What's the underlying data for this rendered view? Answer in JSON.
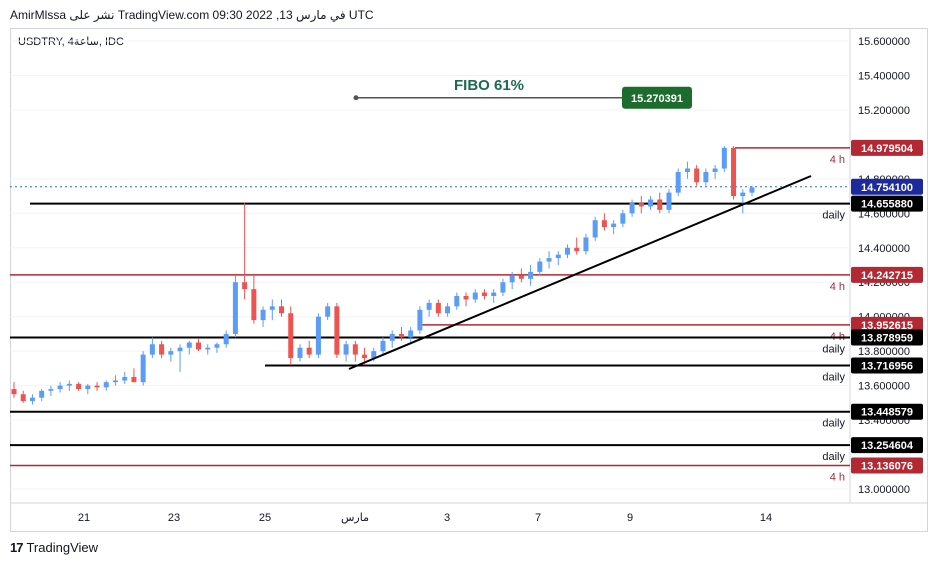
{
  "header": {
    "publish_line": "AmirMlssa نشر على TradingView.com في مارس 13, 2022 09:30 UTC"
  },
  "footer": {
    "logo_glyph": "17",
    "brand": "TradingView"
  },
  "colors": {
    "up": "#5b9cf6",
    "down": "#ef5350",
    "red_line": "#b22833",
    "black_line": "#000000",
    "fibo_text": "#1b6b50",
    "fibo_label_bg": "#1e6b2e",
    "price_label_bg": "#1c2a9c",
    "grid": "#f0f3fa",
    "current_price_line": "#2962ff"
  },
  "chart_data": {
    "type": "candlestick",
    "symbol_label": "USDTRY, 4ساعة, IDC",
    "x_ticks": [
      "21",
      "23",
      "25",
      "مارس",
      "3",
      "7",
      "9",
      "14"
    ],
    "y_ticks": [
      "15.600000",
      "15.400000",
      "15.200000",
      "14.800000",
      "14.600000",
      "14.400000",
      "14.200000",
      "14.000000",
      "13.800000",
      "13.600000",
      "13.400000",
      "13.000000"
    ],
    "ylim": [
      12.9,
      15.7
    ],
    "annotation": {
      "text": "FIBO 61%",
      "value": "15.270391",
      "price": 15.270391
    },
    "current_price": "14.754100",
    "levels": [
      {
        "price": 14.979504,
        "label": "14.979504",
        "tag": "4 h",
        "color": "red"
      },
      {
        "price": 14.65588,
        "label": "14.655880",
        "tag": "daily",
        "color": "black"
      },
      {
        "price": 14.242715,
        "label": "14.242715",
        "tag": "4 h",
        "color": "red"
      },
      {
        "price": 13.952615,
        "label": "13.952615",
        "tag": "4 h",
        "color": "red"
      },
      {
        "price": 13.878959,
        "label": "13.878959",
        "tag": "daily",
        "color": "black"
      },
      {
        "price": 13.716956,
        "label": "13.716956",
        "tag": "daily",
        "color": "black"
      },
      {
        "price": 13.448579,
        "label": "13.448579",
        "tag": "daily",
        "color": "black"
      },
      {
        "price": 13.254604,
        "label": "13.254604",
        "tag": "daily",
        "color": "black"
      },
      {
        "price": 13.136076,
        "label": "13.136076",
        "tag": "4 h",
        "color": "red"
      }
    ],
    "candles": [
      [
        13.58,
        13.62,
        13.53,
        13.55
      ],
      [
        13.55,
        13.57,
        13.5,
        13.51
      ],
      [
        13.51,
        13.55,
        13.49,
        13.53
      ],
      [
        13.53,
        13.58,
        13.51,
        13.57
      ],
      [
        13.57,
        13.6,
        13.54,
        13.58
      ],
      [
        13.58,
        13.62,
        13.56,
        13.6
      ],
      [
        13.6,
        13.63,
        13.57,
        13.61
      ],
      [
        13.61,
        13.62,
        13.57,
        13.58
      ],
      [
        13.58,
        13.61,
        13.55,
        13.6
      ],
      [
        13.6,
        13.62,
        13.57,
        13.59
      ],
      [
        13.59,
        13.63,
        13.57,
        13.62
      ],
      [
        13.62,
        13.66,
        13.6,
        13.63
      ],
      [
        13.63,
        13.68,
        13.61,
        13.65
      ],
      [
        13.65,
        13.7,
        13.62,
        13.62
      ],
      [
        13.62,
        13.8,
        13.6,
        13.78
      ],
      [
        13.78,
        13.88,
        13.76,
        13.84
      ],
      [
        13.84,
        13.86,
        13.76,
        13.78
      ],
      [
        13.78,
        13.82,
        13.74,
        13.8
      ],
      [
        13.8,
        13.84,
        13.68,
        13.82
      ],
      [
        13.82,
        13.86,
        13.78,
        13.85
      ],
      [
        13.85,
        13.87,
        13.8,
        13.81
      ],
      [
        13.81,
        13.84,
        13.78,
        13.82
      ],
      [
        13.82,
        13.85,
        13.79,
        13.84
      ],
      [
        13.84,
        13.92,
        13.82,
        13.9
      ],
      [
        13.9,
        14.24,
        13.88,
        14.2
      ],
      [
        14.2,
        14.66,
        14.1,
        14.16
      ],
      [
        14.16,
        14.25,
        13.96,
        13.98
      ],
      [
        13.98,
        14.06,
        13.94,
        14.04
      ],
      [
        14.04,
        14.1,
        13.98,
        14.06
      ],
      [
        14.06,
        14.1,
        14.0,
        14.02
      ],
      [
        14.02,
        14.06,
        13.72,
        13.76
      ],
      [
        13.76,
        13.84,
        13.74,
        13.82
      ],
      [
        13.82,
        13.86,
        13.76,
        13.78
      ],
      [
        13.78,
        14.02,
        13.76,
        14.0
      ],
      [
        14.0,
        14.08,
        13.98,
        14.06
      ],
      [
        14.06,
        14.08,
        13.76,
        13.78
      ],
      [
        13.78,
        13.86,
        13.74,
        13.84
      ],
      [
        13.84,
        13.86,
        13.74,
        13.78
      ],
      [
        13.78,
        13.82,
        13.72,
        13.76
      ],
      [
        13.76,
        13.82,
        13.74,
        13.8
      ],
      [
        13.8,
        13.88,
        13.78,
        13.86
      ],
      [
        13.86,
        13.92,
        13.82,
        13.9
      ],
      [
        13.9,
        13.94,
        13.86,
        13.88
      ],
      [
        13.88,
        13.94,
        13.84,
        13.92
      ],
      [
        13.92,
        14.06,
        13.9,
        14.04
      ],
      [
        14.04,
        14.1,
        14.0,
        14.08
      ],
      [
        14.08,
        14.1,
        14.0,
        14.02
      ],
      [
        14.02,
        14.08,
        14.0,
        14.06
      ],
      [
        14.06,
        14.14,
        14.04,
        14.12
      ],
      [
        14.12,
        14.14,
        14.06,
        14.1
      ],
      [
        14.1,
        14.16,
        14.08,
        14.14
      ],
      [
        14.14,
        14.16,
        14.1,
        14.12
      ],
      [
        14.12,
        14.16,
        14.08,
        14.14
      ],
      [
        14.14,
        14.22,
        14.12,
        14.2
      ],
      [
        14.2,
        14.26,
        14.16,
        14.24
      ],
      [
        14.24,
        14.28,
        14.2,
        14.22
      ],
      [
        14.22,
        14.3,
        14.18,
        14.26
      ],
      [
        14.26,
        14.34,
        14.24,
        14.32
      ],
      [
        14.32,
        14.38,
        14.28,
        14.34
      ],
      [
        14.34,
        14.38,
        14.3,
        14.36
      ],
      [
        14.36,
        14.42,
        14.34,
        14.4
      ],
      [
        14.4,
        14.46,
        14.36,
        14.38
      ],
      [
        14.38,
        14.48,
        14.36,
        14.46
      ],
      [
        14.46,
        14.58,
        14.44,
        14.56
      ],
      [
        14.56,
        14.6,
        14.5,
        14.52
      ],
      [
        14.52,
        14.56,
        14.48,
        14.54
      ],
      [
        14.54,
        14.62,
        14.52,
        14.6
      ],
      [
        14.6,
        14.68,
        14.58,
        14.66
      ],
      [
        14.66,
        14.7,
        14.6,
        14.64
      ],
      [
        14.64,
        14.7,
        14.62,
        14.68
      ],
      [
        14.68,
        14.72,
        14.6,
        14.62
      ],
      [
        14.62,
        14.74,
        14.6,
        14.72
      ],
      [
        14.72,
        14.86,
        14.7,
        14.84
      ],
      [
        14.84,
        14.9,
        14.8,
        14.86
      ],
      [
        14.86,
        14.88,
        14.76,
        14.78
      ],
      [
        14.78,
        14.86,
        14.76,
        14.84
      ],
      [
        14.84,
        14.88,
        14.8,
        14.86
      ],
      [
        14.86,
        14.99,
        14.84,
        14.98
      ],
      [
        14.98,
        14.99,
        14.68,
        14.7
      ],
      [
        14.7,
        14.74,
        14.6,
        14.72
      ],
      [
        14.72,
        14.76,
        14.7,
        14.75
      ]
    ]
  }
}
